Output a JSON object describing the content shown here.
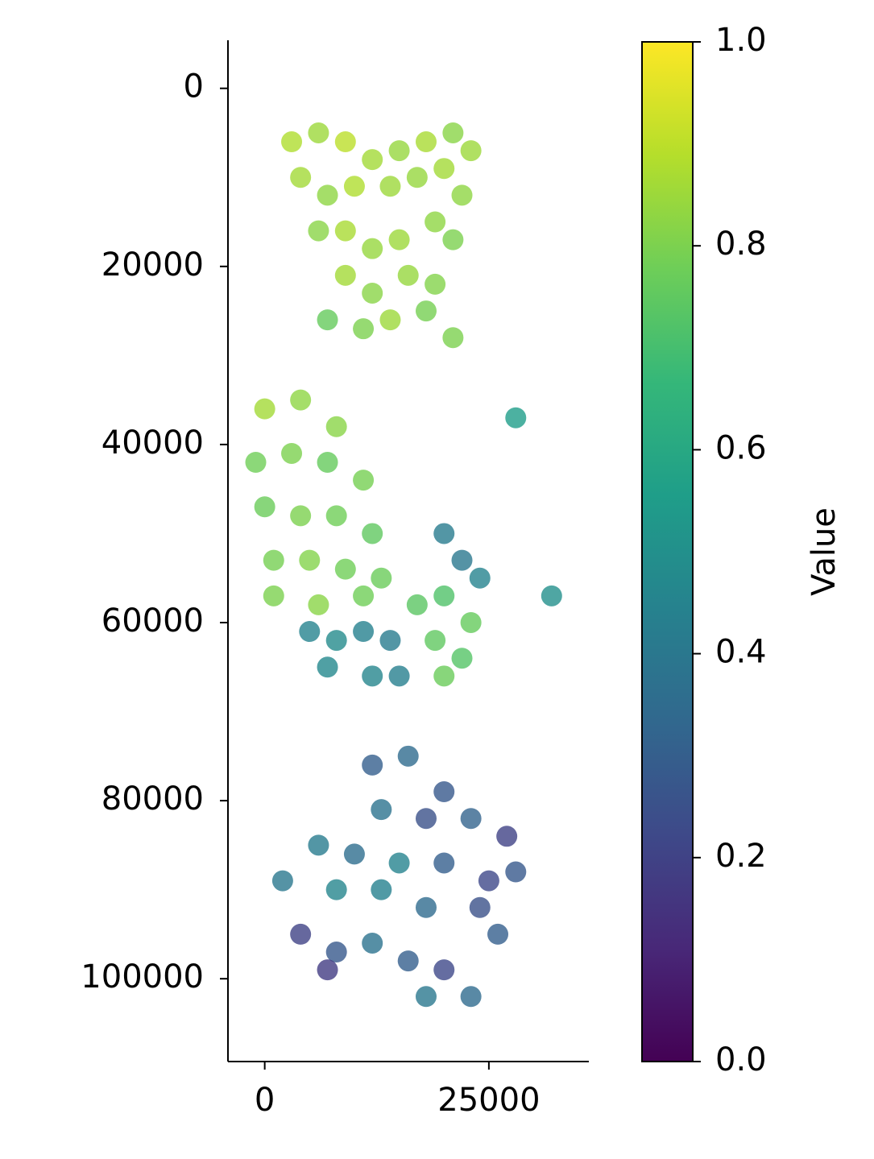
{
  "chart_data": {
    "type": "scatter",
    "x": [
      3000,
      6000,
      9000,
      12000,
      15000,
      18000,
      21000,
      23000,
      4000,
      7000,
      10000,
      14000,
      17000,
      20000,
      22000,
      6000,
      9000,
      12000,
      15000,
      19000,
      21000,
      9000,
      12000,
      16000,
      19000,
      7000,
      11000,
      14000,
      18000,
      21000,
      0,
      4000,
      8000,
      -1000,
      3000,
      7000,
      11000,
      0,
      4000,
      8000,
      12000,
      1000,
      5000,
      9000,
      13000,
      1000,
      6000,
      11000,
      17000,
      20000,
      23000,
      19000,
      22000,
      20000,
      5000,
      8000,
      11000,
      14000,
      7000,
      12000,
      15000,
      20000,
      22000,
      24000,
      32000,
      28000,
      12000,
      16000,
      20000,
      13000,
      18000,
      23000,
      27000,
      6000,
      10000,
      15000,
      20000,
      25000,
      28000,
      2000,
      8000,
      13000,
      18000,
      24000,
      26000,
      4000,
      8000,
      12000,
      16000,
      20000,
      23000,
      7000,
      18000
    ],
    "y": [
      6000,
      5000,
      6000,
      8000,
      7000,
      6000,
      5000,
      7000,
      10000,
      12000,
      11000,
      11000,
      10000,
      9000,
      12000,
      16000,
      16000,
      18000,
      17000,
      15000,
      17000,
      21000,
      23000,
      21000,
      22000,
      26000,
      27000,
      26000,
      25000,
      28000,
      36000,
      35000,
      38000,
      42000,
      41000,
      42000,
      44000,
      47000,
      48000,
      48000,
      50000,
      53000,
      53000,
      54000,
      55000,
      57000,
      58000,
      57000,
      58000,
      57000,
      60000,
      62000,
      64000,
      66000,
      61000,
      62000,
      61000,
      62000,
      65000,
      66000,
      66000,
      50000,
      53000,
      55000,
      57000,
      37000,
      76000,
      75000,
      79000,
      81000,
      82000,
      82000,
      84000,
      85000,
      86000,
      87000,
      87000,
      89000,
      88000,
      89000,
      90000,
      90000,
      92000,
      92000,
      95000,
      95000,
      97000,
      96000,
      98000,
      99000,
      102000,
      99000,
      102000
    ],
    "values": [
      0.88,
      0.85,
      0.9,
      0.86,
      0.84,
      0.87,
      0.82,
      0.85,
      0.86,
      0.83,
      0.88,
      0.85,
      0.84,
      0.86,
      0.83,
      0.82,
      0.87,
      0.84,
      0.85,
      0.83,
      0.8,
      0.86,
      0.82,
      0.84,
      0.81,
      0.76,
      0.8,
      0.85,
      0.79,
      0.8,
      0.86,
      0.83,
      0.82,
      0.78,
      0.8,
      0.76,
      0.79,
      0.77,
      0.8,
      0.78,
      0.75,
      0.79,
      0.81,
      0.78,
      0.77,
      0.8,
      0.82,
      0.78,
      0.74,
      0.72,
      0.76,
      0.75,
      0.73,
      0.77,
      0.45,
      0.48,
      0.44,
      0.42,
      0.47,
      0.46,
      0.43,
      0.42,
      0.4,
      0.45,
      0.5,
      0.55,
      0.3,
      0.35,
      0.28,
      0.38,
      0.25,
      0.32,
      0.2,
      0.42,
      0.36,
      0.45,
      0.3,
      0.22,
      0.28,
      0.4,
      0.46,
      0.44,
      0.35,
      0.25,
      0.3,
      0.2,
      0.28,
      0.38,
      0.3,
      0.22,
      0.35,
      0.18,
      0.4
    ],
    "xlim": [
      -4100,
      36150
    ],
    "ylim": [
      109300,
      -5400
    ],
    "xticks": [
      0,
      25000
    ],
    "yticks": [
      0,
      20000,
      40000,
      60000,
      80000,
      100000
    ],
    "colorscale": [
      "#440154",
      "#482878",
      "#3e4989",
      "#31688e",
      "#26828e",
      "#1f9e89",
      "#35b779",
      "#6ece58",
      "#b5de2b",
      "#fde725"
    ],
    "clim": [
      0,
      1
    ],
    "cticks": [
      {
        "value": 0,
        "label": "0.0"
      },
      0.2,
      0.4,
      0.6,
      0.8,
      {
        "value": 1,
        "label": "1.0"
      }
    ],
    "colorbar_label": "Value"
  }
}
